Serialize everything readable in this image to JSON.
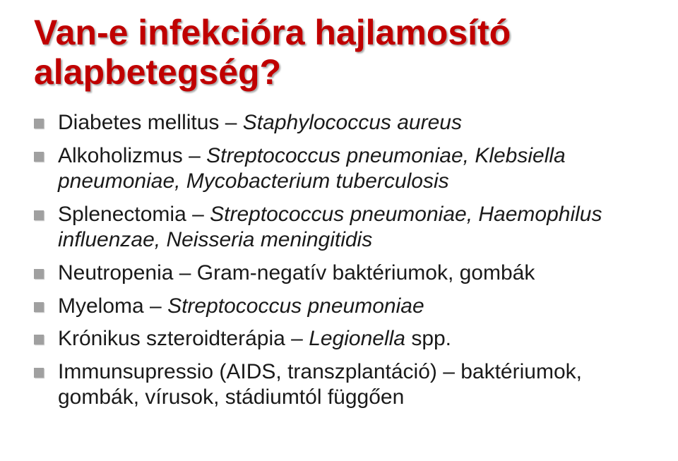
{
  "title_color": "#c00000",
  "bullet_color": "#a0a0a0",
  "text_color": "#1a1a1a",
  "background": "#ffffff",
  "title_fontsize": 50,
  "body_fontsize": 30,
  "title": "Van-e infekcióra hajlamosító alapbetegség?",
  "items": [
    {
      "lead": "Diabetes mellitus – ",
      "species": "Staphylococcus aureus"
    },
    {
      "lead": "Alkoholizmus – ",
      "species": "Streptococcus pneumoniae, Klebsiella pneumoniae, Mycobacterium tuberculosis"
    },
    {
      "lead": "Splenectomia – ",
      "species": "Streptococcus pneumoniae, Haemophilus influenzae, Neisseria meningitidis"
    },
    {
      "lead": "Neutropenia – Gram-negatív baktériumok, gombák",
      "species": ""
    },
    {
      "lead": "Myeloma – ",
      "species": "Streptococcus pneumoniae"
    },
    {
      "lead": "Krónikus szteroidterápia – ",
      "species": "Legionella ",
      "trail": "spp."
    },
    {
      "lead": "Immunsupressio (AIDS, transzplantáció) – baktériumok, gombák, vírusok, stádiumtól függően",
      "species": ""
    }
  ]
}
